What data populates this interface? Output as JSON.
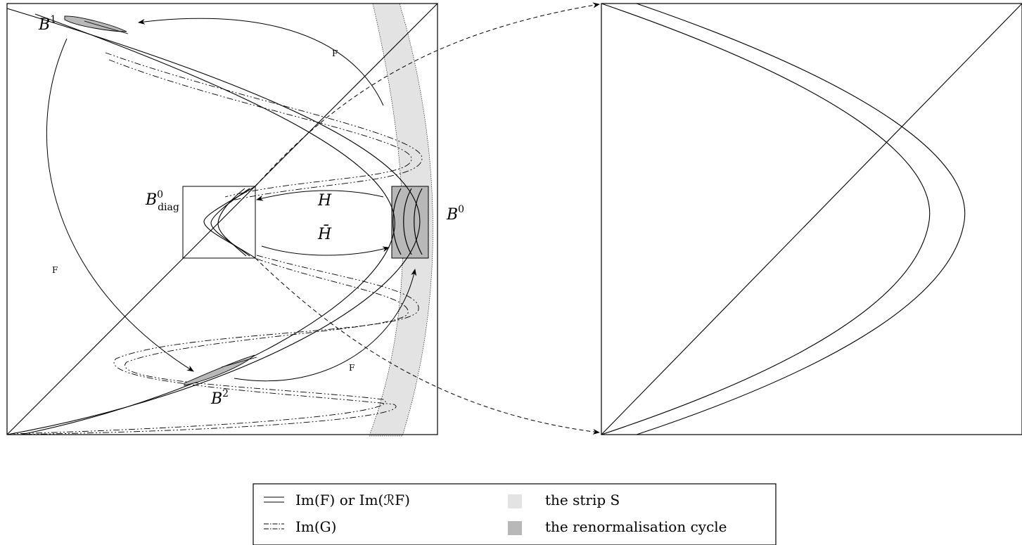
{
  "labels": {
    "b1": "B",
    "b1_sup": "1",
    "b2": "B",
    "b2_sup": "2",
    "b0": "B",
    "b0_sup": "0",
    "bdiag": "B",
    "bdiag_sup": "0",
    "bdiag_sub": "diag",
    "h": "H",
    "hbar": "H̄",
    "f_top": "F",
    "f_left": "F",
    "f_bottom": "F"
  },
  "legend": {
    "items": [
      {
        "id": "solid",
        "text": "Im(F) or Im(ℛF)",
        "marker": "solid-lines"
      },
      {
        "id": "dashdot",
        "text": "Im(G)",
        "marker": "dashdot-lines"
      },
      {
        "id": "strip",
        "text": "the strip S",
        "marker": "light-square",
        "color": "#e3e3e3"
      },
      {
        "id": "cycle",
        "text": "the renormalisation cycle",
        "marker": "dark-square",
        "color": "#b8b8b8"
      }
    ]
  },
  "colors": {
    "strip": "#e3e3e3",
    "cycle": "#b8b8b8",
    "ink": "#000000"
  }
}
